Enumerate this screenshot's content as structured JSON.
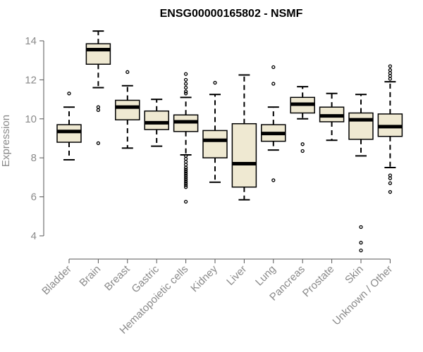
{
  "chart_data": {
    "type": "boxplot",
    "title": "ENSG00000165802 - NSMF",
    "xlabel": "",
    "ylabel": "Expression",
    "ylim": [
      3.0,
      14.8
    ],
    "yticks": [
      4,
      6,
      8,
      10,
      12,
      14
    ],
    "box_fill": "#efe9d2",
    "categories": [
      "Bladder",
      "Brain",
      "Breast",
      "Gastric",
      "Hematopoietic cells",
      "Kidney",
      "Liver",
      "Lung",
      "Pancreas",
      "Prostate",
      "Skin",
      "Unknown / Other"
    ],
    "boxes": [
      {
        "q1": 8.8,
        "median": 9.35,
        "q3": 9.7,
        "whisker_low": 7.9,
        "whisker_high": 10.6,
        "outliers": [
          11.3
        ]
      },
      {
        "q1": 12.8,
        "median": 13.55,
        "q3": 13.85,
        "whisker_low": 11.6,
        "whisker_high": 14.5,
        "outliers": [
          10.6,
          10.45,
          8.75
        ]
      },
      {
        "q1": 9.95,
        "median": 10.6,
        "q3": 10.95,
        "whisker_low": 8.5,
        "whisker_high": 11.7,
        "outliers": [
          12.4
        ]
      },
      {
        "q1": 9.45,
        "median": 9.8,
        "q3": 10.4,
        "whisker_low": 8.6,
        "whisker_high": 11.0,
        "outliers": []
      },
      {
        "q1": 9.35,
        "median": 9.85,
        "q3": 10.2,
        "whisker_low": 8.15,
        "whisker_high": 11.1,
        "outliers": [
          12.3,
          12.0,
          11.8,
          11.6,
          11.4,
          11.3,
          8.1,
          7.95,
          7.8,
          7.65,
          7.5,
          7.4,
          7.3,
          7.2,
          7.1,
          7.0,
          6.9,
          6.8,
          6.7,
          6.6,
          6.5,
          5.75
        ]
      },
      {
        "q1": 8.0,
        "median": 8.9,
        "q3": 9.4,
        "whisker_low": 6.75,
        "whisker_high": 11.25,
        "outliers": [
          11.85
        ]
      },
      {
        "q1": 6.5,
        "median": 7.7,
        "q3": 9.75,
        "whisker_low": 5.85,
        "whisker_high": 12.25,
        "outliers": []
      },
      {
        "q1": 8.85,
        "median": 9.25,
        "q3": 9.7,
        "whisker_low": 8.4,
        "whisker_high": 10.6,
        "outliers": [
          12.65,
          11.8,
          6.85
        ]
      },
      {
        "q1": 10.3,
        "median": 10.75,
        "q3": 11.1,
        "whisker_low": 10.0,
        "whisker_high": 11.65,
        "outliers": [
          8.7,
          8.35
        ]
      },
      {
        "q1": 9.85,
        "median": 10.15,
        "q3": 10.6,
        "whisker_low": 8.9,
        "whisker_high": 11.3,
        "outliers": []
      },
      {
        "q1": 8.95,
        "median": 9.95,
        "q3": 10.3,
        "whisker_low": 8.1,
        "whisker_high": 11.25,
        "outliers": [
          4.45,
          3.65,
          3.25
        ]
      },
      {
        "q1": 9.1,
        "median": 9.6,
        "q3": 10.25,
        "whisker_low": 7.5,
        "whisker_high": 11.9,
        "outliers": [
          12.7,
          12.5,
          12.35,
          12.2,
          12.05,
          7.1,
          6.95,
          6.7,
          6.25
        ]
      }
    ]
  }
}
